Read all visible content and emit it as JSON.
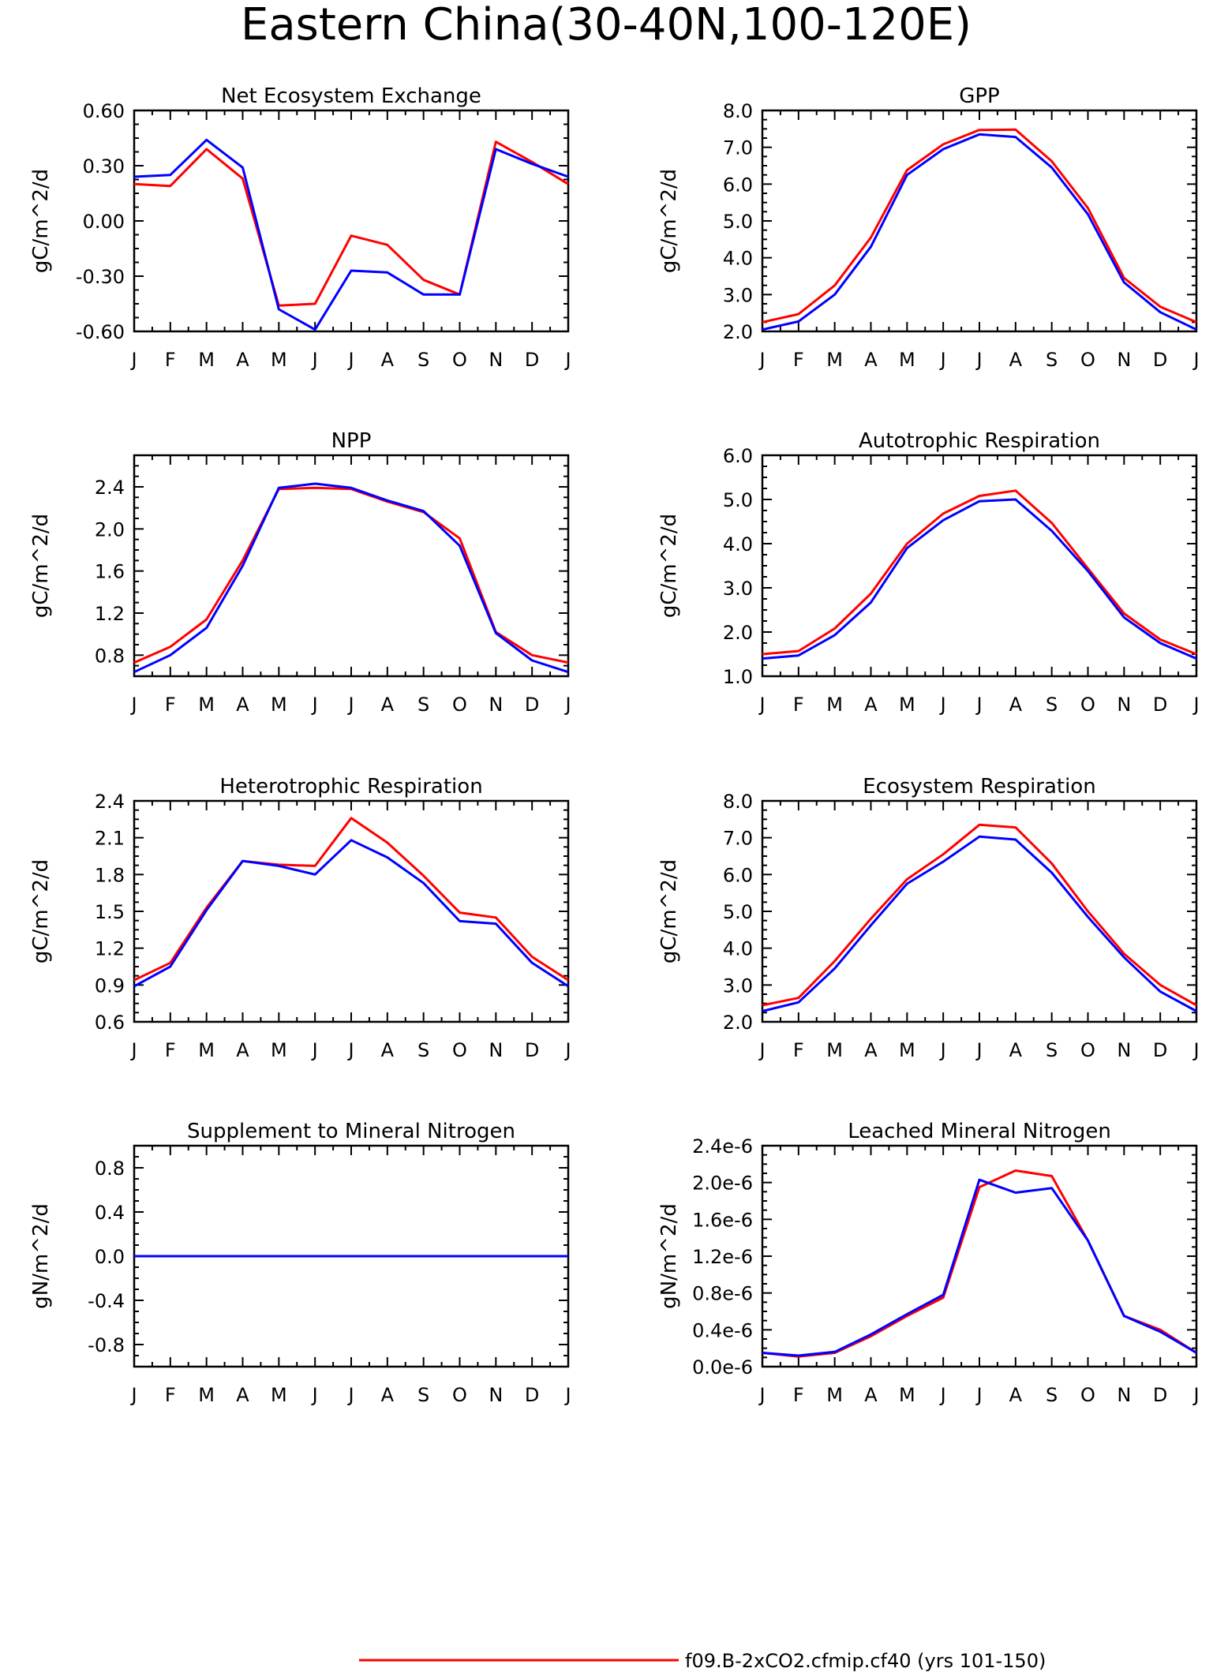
{
  "title": "Eastern China(30-40N,100-120E)",
  "colors": {
    "red": "#ff0000",
    "blue": "#0000ff"
  },
  "legend": {
    "entries": [
      {
        "label": "f09.B-2xCO2.cfmip.cf40 (yrs 101-150)",
        "color": "#ff0000"
      }
    ]
  },
  "months": [
    "J",
    "F",
    "M",
    "A",
    "M",
    "J",
    "J",
    "A",
    "S",
    "O",
    "N",
    "D",
    "J"
  ],
  "chart_data": [
    {
      "type": "line",
      "title": "Net Ecosystem Exchange",
      "ylabel": "gC/m^2/d",
      "ylim": [
        -0.6,
        0.6
      ],
      "yticks": [
        -0.6,
        -0.3,
        0.0,
        0.3,
        0.6
      ],
      "ytick_labels": [
        "-0.60",
        "-0.30",
        "0.00",
        "0.30",
        "0.60"
      ],
      "series": [
        {
          "color": "#ff0000",
          "values": [
            0.2,
            0.19,
            0.39,
            0.23,
            -0.46,
            -0.45,
            -0.08,
            -0.13,
            -0.32,
            -0.4,
            0.43,
            0.32,
            0.2
          ]
        },
        {
          "color": "#0000ff",
          "values": [
            0.24,
            0.25,
            0.44,
            0.29,
            -0.48,
            -0.59,
            -0.27,
            -0.28,
            -0.4,
            -0.4,
            0.39,
            0.31,
            0.24
          ]
        }
      ]
    },
    {
      "type": "line",
      "title": "GPP",
      "ylabel": "gC/m^2/d",
      "ylim": [
        2.0,
        8.0
      ],
      "yticks": [
        2.0,
        3.0,
        4.0,
        5.0,
        6.0,
        7.0,
        8.0
      ],
      "ytick_labels": [
        "2.0",
        "3.0",
        "4.0",
        "5.0",
        "6.0",
        "7.0",
        "8.0"
      ],
      "series": [
        {
          "color": "#ff0000",
          "values": [
            2.25,
            2.47,
            3.25,
            4.55,
            6.38,
            7.08,
            7.47,
            7.48,
            6.62,
            5.35,
            3.45,
            2.67,
            2.25
          ]
        },
        {
          "color": "#0000ff",
          "values": [
            2.05,
            2.27,
            3.0,
            4.3,
            6.25,
            6.95,
            7.35,
            7.28,
            6.45,
            5.18,
            3.33,
            2.52,
            2.05
          ]
        }
      ]
    },
    {
      "type": "line",
      "title": "NPP",
      "ylabel": "gC/m^2/d",
      "ylim": [
        0.6,
        2.7
      ],
      "yticks": [
        0.8,
        1.2,
        1.6,
        2.0,
        2.4
      ],
      "ytick_labels": [
        "0.8",
        "1.2",
        "1.6",
        "2.0",
        "2.4"
      ],
      "series": [
        {
          "color": "#ff0000",
          "values": [
            0.73,
            0.88,
            1.14,
            1.7,
            2.38,
            2.39,
            2.38,
            2.26,
            2.16,
            1.91,
            1.02,
            0.8,
            0.73
          ]
        },
        {
          "color": "#0000ff",
          "values": [
            0.64,
            0.8,
            1.06,
            1.65,
            2.39,
            2.43,
            2.39,
            2.27,
            2.17,
            1.84,
            1.01,
            0.75,
            0.64
          ]
        }
      ]
    },
    {
      "type": "line",
      "title": "Autotrophic Respiration",
      "ylabel": "gC/m^2/d",
      "ylim": [
        1.0,
        6.0
      ],
      "yticks": [
        1.0,
        2.0,
        3.0,
        4.0,
        5.0,
        6.0
      ],
      "ytick_labels": [
        "1.0",
        "2.0",
        "3.0",
        "4.0",
        "5.0",
        "6.0"
      ],
      "series": [
        {
          "color": "#ff0000",
          "values": [
            1.5,
            1.57,
            2.08,
            2.87,
            4.0,
            4.68,
            5.08,
            5.2,
            4.47,
            3.44,
            2.42,
            1.83,
            1.5
          ]
        },
        {
          "color": "#0000ff",
          "values": [
            1.4,
            1.47,
            1.93,
            2.67,
            3.9,
            4.53,
            4.96,
            5.0,
            4.29,
            3.38,
            2.33,
            1.75,
            1.4
          ]
        }
      ]
    },
    {
      "type": "line",
      "title": "Heterotrophic Respiration",
      "ylabel": "gC/m^2/d",
      "ylim": [
        0.6,
        2.4
      ],
      "yticks": [
        0.6,
        0.9,
        1.2,
        1.5,
        1.8,
        2.1,
        2.4
      ],
      "ytick_labels": [
        "0.6",
        "0.9",
        "1.2",
        "1.5",
        "1.8",
        "2.1",
        "2.4"
      ],
      "series": [
        {
          "color": "#ff0000",
          "values": [
            0.94,
            1.08,
            1.53,
            1.91,
            1.88,
            1.87,
            2.26,
            2.06,
            1.79,
            1.49,
            1.45,
            1.13,
            0.94
          ]
        },
        {
          "color": "#0000ff",
          "values": [
            0.89,
            1.05,
            1.51,
            1.91,
            1.87,
            1.8,
            2.08,
            1.94,
            1.73,
            1.42,
            1.4,
            1.08,
            0.89
          ]
        }
      ]
    },
    {
      "type": "line",
      "title": "Ecosystem Respiration",
      "ylabel": "gC/m^2/d",
      "ylim": [
        2.0,
        8.0
      ],
      "yticks": [
        2.0,
        3.0,
        4.0,
        5.0,
        6.0,
        7.0,
        8.0
      ],
      "ytick_labels": [
        "2.0",
        "3.0",
        "4.0",
        "5.0",
        "6.0",
        "7.0",
        "8.0"
      ],
      "series": [
        {
          "color": "#ff0000",
          "values": [
            2.45,
            2.65,
            3.65,
            4.8,
            5.87,
            6.55,
            7.35,
            7.28,
            6.3,
            5.0,
            3.85,
            3.0,
            2.45
          ]
        },
        {
          "color": "#0000ff",
          "values": [
            2.29,
            2.53,
            3.45,
            4.62,
            5.75,
            6.35,
            7.03,
            6.95,
            6.05,
            4.85,
            3.75,
            2.82,
            2.29
          ]
        }
      ]
    },
    {
      "type": "line",
      "title": "Supplement to Mineral Nitrogen",
      "ylabel": "gN/m^2/d",
      "ylim": [
        -1.0,
        1.0
      ],
      "yticks": [
        -0.8,
        -0.4,
        0.0,
        0.4,
        0.8
      ],
      "ytick_labels": [
        "-0.8",
        "-0.4",
        "0.0",
        "0.4",
        "0.8"
      ],
      "series": [
        {
          "color": "#ff0000",
          "values": [
            0,
            0,
            0,
            0,
            0,
            0,
            0,
            0,
            0,
            0,
            0,
            0,
            0
          ]
        },
        {
          "color": "#0000ff",
          "values": [
            0,
            0,
            0,
            0,
            0,
            0,
            0,
            0,
            0,
            0,
            0,
            0,
            0
          ]
        }
      ]
    },
    {
      "type": "line",
      "title": "Leached Mineral Nitrogen",
      "ylabel": "gN/m^2/d",
      "ylim": [
        0.0,
        2.4
      ],
      "yticks": [
        0.0,
        0.4,
        0.8,
        1.2,
        1.6,
        2.0,
        2.4
      ],
      "ytick_labels": [
        "0.0e-6",
        "0.4e-6",
        "0.8e-6",
        "1.2e-6",
        "1.6e-6",
        "2.0e-6",
        "2.4e-6"
      ],
      "value_scale": "e-6",
      "series": [
        {
          "color": "#ff0000",
          "values": [
            0.15,
            0.11,
            0.15,
            0.33,
            0.55,
            0.75,
            1.95,
            2.13,
            2.07,
            1.37,
            0.55,
            0.4,
            0.15
          ]
        },
        {
          "color": "#0000ff",
          "values": [
            0.15,
            0.12,
            0.16,
            0.35,
            0.57,
            0.78,
            2.03,
            1.89,
            1.94,
            1.37,
            0.55,
            0.38,
            0.15
          ]
        }
      ]
    }
  ]
}
